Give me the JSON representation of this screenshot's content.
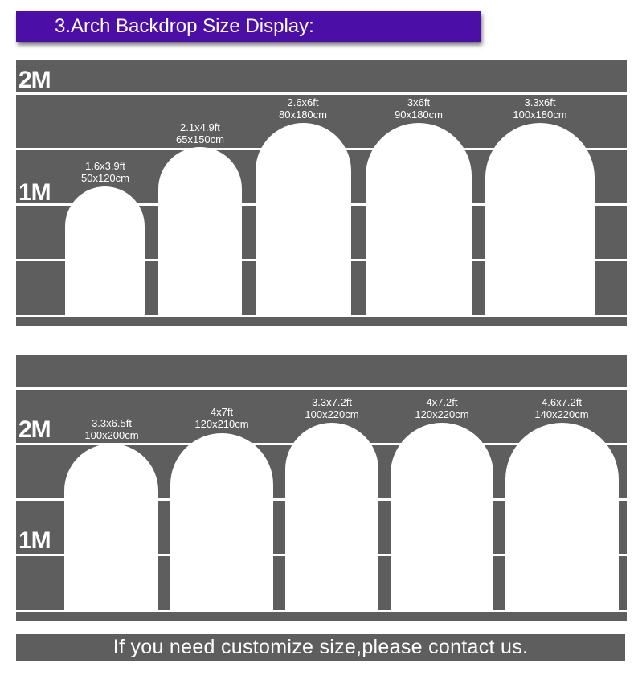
{
  "title": "3.Arch Backdrop Size Display:",
  "footer": "If you need customize size,please contact us.",
  "colors": {
    "banner": "#4b0fa8",
    "panel": "#5e5e5e",
    "arch": "#ffffff"
  },
  "panels": [
    {
      "scale_labels": {
        "two_m": "2M",
        "one_m": "1M"
      },
      "arches": [
        {
          "ft": "1.6x3.9ft",
          "cm": "50x120cm"
        },
        {
          "ft": "2.1x4.9ft",
          "cm": "65x150cm"
        },
        {
          "ft": "2.6x6ft",
          "cm": "80x180cm"
        },
        {
          "ft": "3x6ft",
          "cm": "90x180cm"
        },
        {
          "ft": "3.3x6ft",
          "cm": "100x180cm"
        }
      ]
    },
    {
      "scale_labels": {
        "two_m": "2M",
        "one_m": "1M"
      },
      "arches": [
        {
          "ft": "3.3x6.5ft",
          "cm": "100x200cm"
        },
        {
          "ft": "4x7ft",
          "cm": "120x210cm"
        },
        {
          "ft": "3.3x7.2ft",
          "cm": "100x220cm"
        },
        {
          "ft": "4x7.2ft",
          "cm": "120x220cm"
        },
        {
          "ft": "4.6x7.2ft",
          "cm": "140x220cm"
        }
      ]
    }
  ]
}
